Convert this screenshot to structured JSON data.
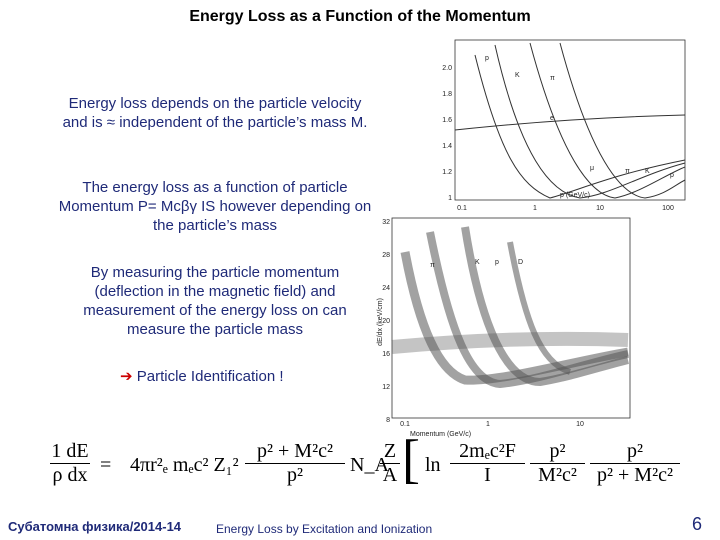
{
  "title": "Energy Loss as a Function of the Momentum",
  "paragraphs": [
    "Energy loss depends on the particle velocity and is ≈ independent of the particle’s mass M.",
    "The energy loss as a function of particle Momentum P= Mcβγ IS however depending on the particle’s mass",
    "By measuring the particle momentum (deflection in the magnetic field) and measurement of the energy loss on can measure the particle mass"
  ],
  "arrow_symbol": "➔",
  "arrow_text": "Particle Identification !",
  "figure_top": {
    "y_ticks": [
      "2.0",
      "1.8",
      "1.6",
      "1.4",
      "1.2",
      "1"
    ],
    "x_ticks": [
      "0.1",
      "1",
      "10",
      "100"
    ],
    "x_label": "p (GeV/c)",
    "curve_labels": [
      "p",
      "K",
      "π",
      "e",
      "μ",
      "π",
      "K",
      "p"
    ]
  },
  "figure_bottom": {
    "y_ticks": [
      "32",
      "28",
      "24",
      "20",
      "16",
      "12",
      "8"
    ],
    "x_ticks": [
      "0.1",
      "1",
      "10"
    ],
    "x_label": "Momentum (GeV/c)",
    "y_label": "dE/dx (keV/cm)",
    "band_labels": [
      "π",
      "K",
      "p",
      "D"
    ]
  },
  "formula": {
    "lhs_num": "1 dE",
    "lhs_den": "ρ dx",
    "eq": "=",
    "factor": "4πr²ₑ mₑc² Z₁²",
    "f1_num": "p² + M²c²",
    "f1_den": "p²",
    "na": "N_A",
    "f2_num": "Z",
    "f2_den": "A",
    "ln": "ln",
    "f3_num": "2mₑc²F",
    "f3_den": "I",
    "f4_num": "p²",
    "f4_den": "M²c²",
    "f5_num": "p²",
    "f5_den": "p² + M²c²"
  },
  "footer": {
    "left": "Субатомна физика/2014-14",
    "center": "Energy Loss by Excitation and Ionization",
    "page": "6"
  }
}
